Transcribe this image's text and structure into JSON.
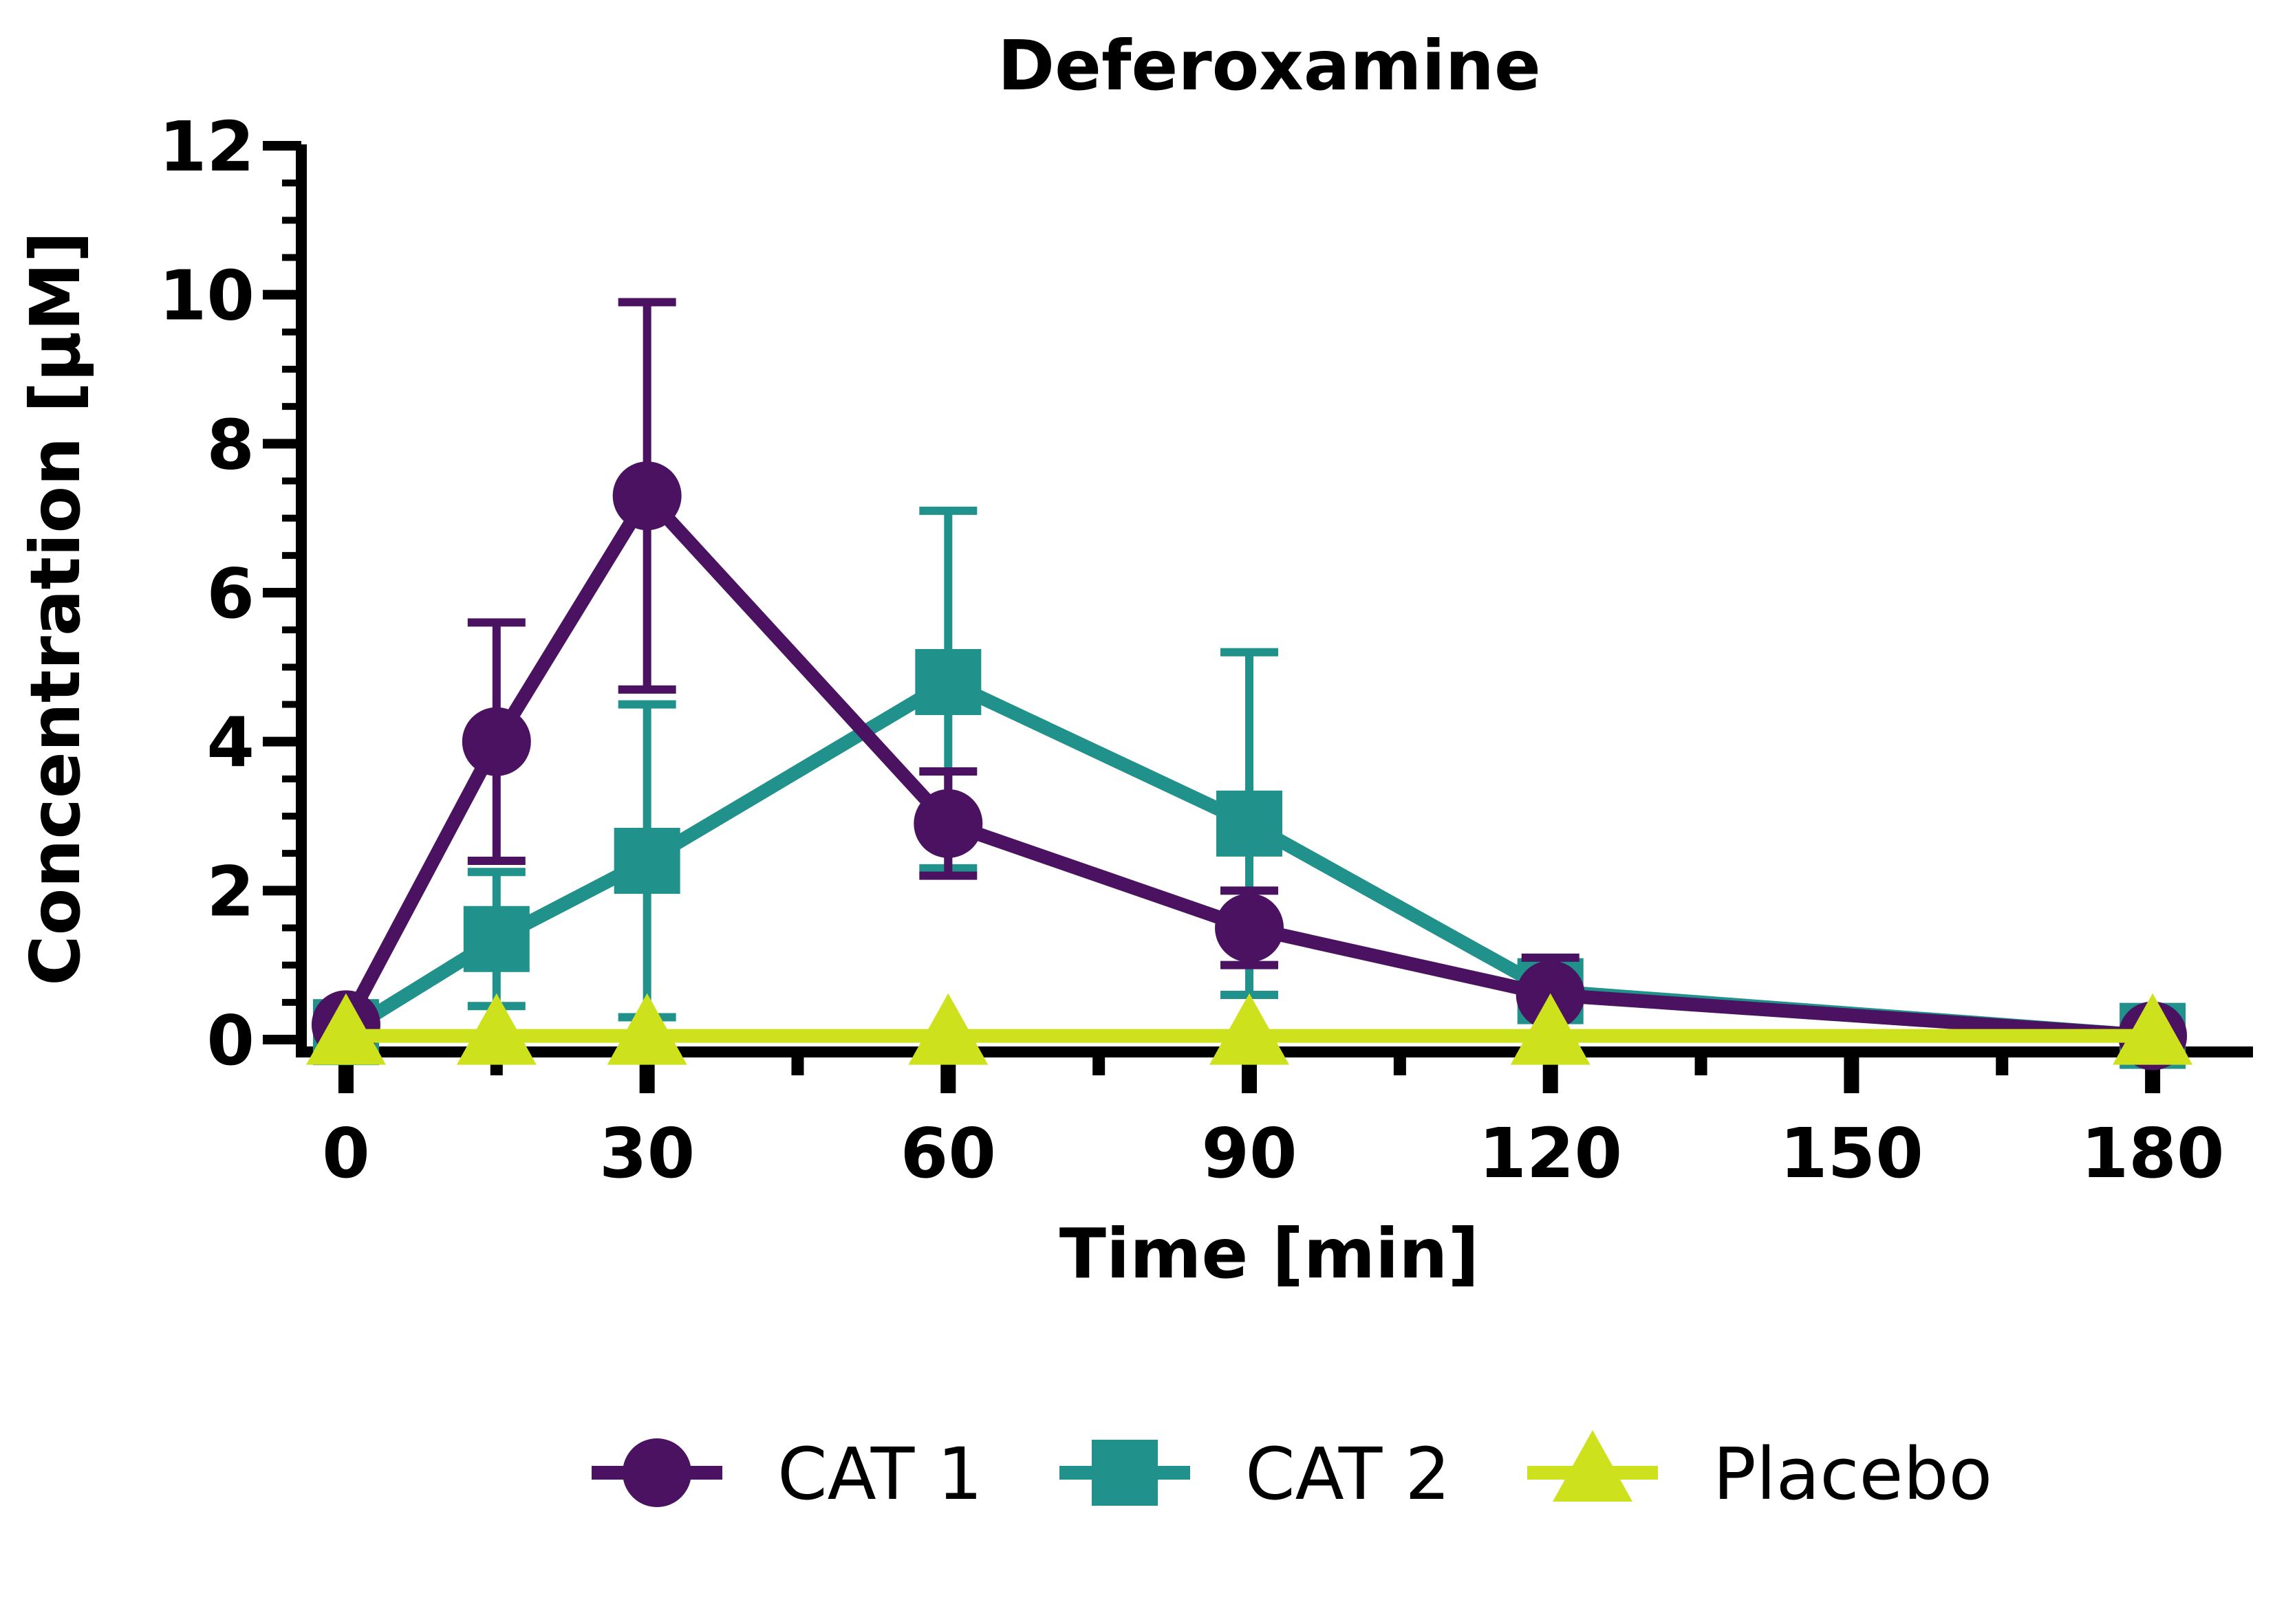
{
  "chart_data": {
    "type": "line",
    "title": "Deferoxamine",
    "xlabel": "Time [min]",
    "ylabel": "Concentration [µM]",
    "xlim": [
      -5,
      190
    ],
    "ylim": [
      0,
      12
    ],
    "xticks": [
      0,
      30,
      60,
      90,
      120,
      150,
      180
    ],
    "xminor_ticks": [
      15,
      45,
      75,
      105,
      135,
      165
    ],
    "yticks": [
      0,
      2,
      4,
      6,
      8,
      10,
      12
    ],
    "yminor_step": 0.5,
    "grid": false,
    "legend_position": "bottom",
    "series": [
      {
        "name": "CAT 1",
        "color": "#4a1260",
        "marker": "circle",
        "x": [
          0,
          15,
          30,
          60,
          90,
          120,
          180
        ],
        "y": [
          0.2,
          4.0,
          7.3,
          2.9,
          1.5,
          0.6,
          0.05
        ],
        "err_low": [
          0,
          1.6,
          2.6,
          0.7,
          0.5,
          0.15,
          0
        ],
        "err_high": [
          0,
          1.6,
          2.6,
          0.7,
          0.5,
          0.5,
          0
        ]
      },
      {
        "name": "CAT 2",
        "color": "#21918c",
        "marker": "square",
        "x": [
          0,
          15,
          30,
          60,
          90,
          120,
          180
        ],
        "y": [
          0.1,
          1.35,
          2.4,
          4.8,
          2.9,
          0.65,
          0.05
        ],
        "err_low": [
          0,
          0.9,
          2.1,
          2.5,
          2.3,
          0.3,
          0
        ],
        "err_high": [
          0,
          0.9,
          2.1,
          2.3,
          2.3,
          0.3,
          0
        ]
      },
      {
        "name": "Placebo",
        "color": "#cde11d",
        "marker": "triangle",
        "x": [
          0,
          15,
          30,
          60,
          90,
          120,
          180
        ],
        "y": [
          0.05,
          0.05,
          0.05,
          0.05,
          0.05,
          0.05,
          0.05
        ],
        "err_low": [
          0,
          0,
          0,
          0,
          0,
          0,
          0
        ],
        "err_high": [
          0,
          0,
          0,
          0,
          0,
          0,
          0
        ]
      }
    ]
  }
}
